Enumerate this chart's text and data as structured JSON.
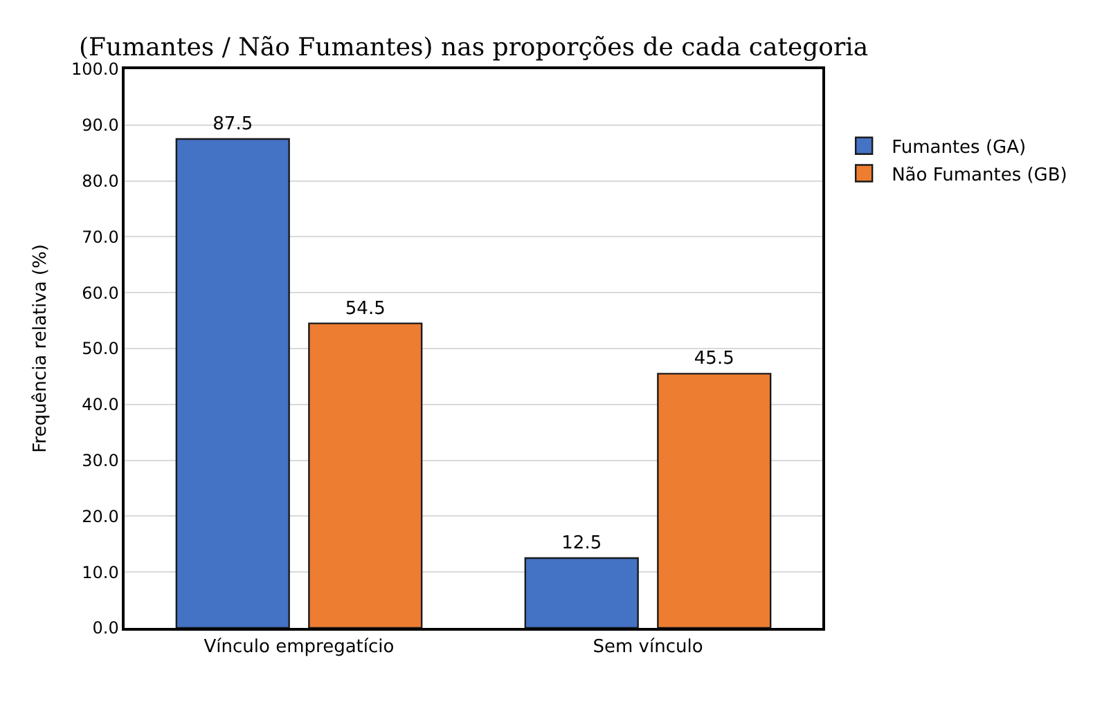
{
  "chart_data": {
    "type": "bar",
    "annotations": [
      "(Fumantes / Não Fumantes) nas proporções de cada categoria"
    ],
    "ylabel": "Frequência relativa (%)",
    "categories": [
      "Vínculo empregatício",
      "Sem vínculo"
    ],
    "series": [
      {
        "name": "Fumantes (GA)",
        "color": "#4472c4",
        "values": [
          87.5,
          12.5
        ]
      },
      {
        "name": "Não Fumantes (GB)",
        "color": "#ed7d31",
        "values": [
          54.5,
          45.5
        ]
      }
    ],
    "ylim": [
      0,
      100
    ],
    "yticks": [
      {
        "value": 0,
        "label": "0.0"
      },
      {
        "value": 10,
        "label": "10.0"
      },
      {
        "value": 20,
        "label": "20.0"
      },
      {
        "value": 30,
        "label": "30.0"
      },
      {
        "value": 40,
        "label": "40.0"
      },
      {
        "value": 50,
        "label": "50.0"
      },
      {
        "value": 60,
        "label": "60.0"
      },
      {
        "value": 70,
        "label": "70.0"
      },
      {
        "value": 80,
        "label": "80.0"
      },
      {
        "value": 90,
        "label": "90.0"
      },
      {
        "value": 100,
        "label": "100.0"
      }
    ],
    "grid": "y",
    "legend": "top right",
    "data_labels": true
  }
}
